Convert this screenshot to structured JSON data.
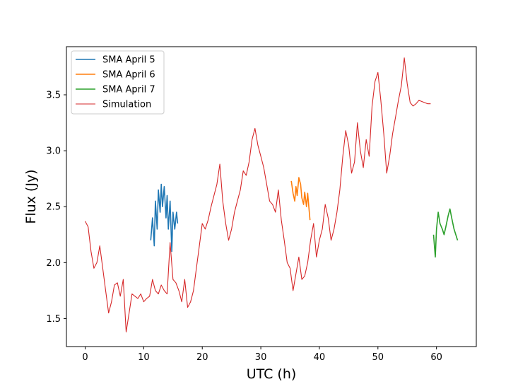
{
  "chart_data": {
    "type": "line",
    "title": "",
    "xlabel": "UTC (h)",
    "ylabel": "Flux (Jy)",
    "xlim": [
      -3.2,
      66.8
    ],
    "ylim": [
      1.25,
      3.93
    ],
    "xticks": [
      0,
      10,
      20,
      30,
      40,
      50,
      60
    ],
    "yticks": [
      1.5,
      2.0,
      2.5,
      3.0,
      3.5
    ],
    "xtick_labels": [
      "0",
      "10",
      "20",
      "30",
      "40",
      "50",
      "60"
    ],
    "ytick_labels": [
      "1.5",
      "2.0",
      "2.5",
      "3.0",
      "3.5"
    ],
    "grid": false,
    "legend_position": "upper-left",
    "series": [
      {
        "name": "SMA April 5",
        "color": "#1f77b4",
        "x": [
          11.2,
          11.5,
          11.8,
          12.0,
          12.3,
          12.5,
          12.8,
          13.0,
          13.2,
          13.5,
          13.8,
          14.0,
          14.2,
          14.5,
          14.8,
          15.0,
          15.3,
          15.6,
          15.8
        ],
        "y": [
          2.2,
          2.4,
          2.15,
          2.55,
          2.3,
          2.65,
          2.45,
          2.7,
          2.5,
          2.68,
          2.4,
          2.6,
          2.3,
          2.55,
          2.1,
          2.45,
          2.3,
          2.45,
          2.35
        ]
      },
      {
        "name": "SMA April 6",
        "color": "#ff7f0e",
        "x": [
          35.2,
          35.5,
          35.8,
          36.0,
          36.2,
          36.5,
          36.8,
          37.0,
          37.3,
          37.5,
          37.8,
          38.0,
          38.2,
          38.4
        ],
        "y": [
          2.73,
          2.62,
          2.55,
          2.68,
          2.6,
          2.76,
          2.7,
          2.58,
          2.52,
          2.63,
          2.5,
          2.62,
          2.5,
          2.38
        ]
      },
      {
        "name": "SMA April 7",
        "color": "#2ca02c",
        "x": [
          59.5,
          59.8,
          60.0,
          60.3,
          60.6,
          61.0,
          61.3,
          61.6,
          62.0,
          62.3,
          62.6,
          63.0,
          63.3,
          63.6
        ],
        "y": [
          2.25,
          2.05,
          2.3,
          2.45,
          2.35,
          2.3,
          2.25,
          2.32,
          2.42,
          2.48,
          2.4,
          2.3,
          2.25,
          2.2
        ]
      },
      {
        "name": "Simulation",
        "color": "#d62728",
        "x": [
          0.0,
          0.5,
          1.0,
          1.5,
          2.0,
          2.5,
          3.0,
          3.5,
          4.0,
          4.5,
          5.0,
          5.5,
          6.0,
          6.5,
          7.0,
          7.5,
          8.0,
          8.5,
          9.0,
          9.5,
          10.0,
          10.5,
          11.0,
          11.5,
          12.0,
          12.5,
          13.0,
          13.5,
          14.0,
          14.5,
          15.0,
          15.5,
          16.0,
          16.5,
          17.0,
          17.5,
          18.0,
          18.5,
          19.0,
          19.5,
          20.0,
          20.5,
          21.0,
          21.5,
          22.0,
          22.5,
          23.0,
          23.5,
          24.0,
          24.5,
          25.0,
          25.5,
          26.0,
          26.5,
          27.0,
          27.5,
          28.0,
          28.5,
          29.0,
          29.5,
          30.0,
          30.5,
          31.0,
          31.5,
          32.0,
          32.5,
          33.0,
          33.5,
          34.0,
          34.5,
          35.0,
          35.5,
          36.0,
          36.5,
          37.0,
          37.5,
          38.0,
          38.5,
          39.0,
          39.5,
          40.0,
          40.5,
          41.0,
          41.5,
          42.0,
          42.5,
          43.0,
          43.5,
          44.0,
          44.5,
          45.0,
          45.5,
          46.0,
          46.5,
          47.0,
          47.5,
          48.0,
          48.5,
          49.0,
          49.5,
          50.0,
          50.5,
          51.0,
          51.5,
          52.0,
          52.5,
          53.0,
          53.5,
          54.0,
          54.5,
          55.0,
          55.5,
          56.0,
          56.5,
          57.0,
          57.5,
          58.0,
          58.5,
          59.0
        ],
        "y": [
          2.37,
          2.32,
          2.1,
          1.95,
          2.0,
          2.15,
          1.95,
          1.75,
          1.55,
          1.65,
          1.8,
          1.82,
          1.7,
          1.85,
          1.38,
          1.55,
          1.72,
          1.7,
          1.68,
          1.72,
          1.65,
          1.68,
          1.7,
          1.85,
          1.75,
          1.72,
          1.8,
          1.75,
          1.72,
          2.18,
          1.85,
          1.82,
          1.75,
          1.65,
          1.85,
          1.6,
          1.65,
          1.75,
          1.95,
          2.15,
          2.35,
          2.3,
          2.38,
          2.5,
          2.6,
          2.7,
          2.88,
          2.55,
          2.35,
          2.2,
          2.3,
          2.45,
          2.55,
          2.65,
          2.82,
          2.78,
          2.9,
          3.1,
          3.2,
          3.05,
          2.95,
          2.85,
          2.7,
          2.55,
          2.52,
          2.45,
          2.65,
          2.38,
          2.2,
          2.0,
          1.95,
          1.75,
          1.9,
          2.05,
          1.85,
          1.88,
          2.0,
          2.2,
          2.35,
          2.05,
          2.2,
          2.3,
          2.52,
          2.4,
          2.2,
          2.3,
          2.45,
          2.65,
          2.95,
          3.18,
          3.05,
          2.8,
          2.9,
          3.25,
          3.0,
          2.85,
          3.1,
          2.95,
          3.4,
          3.62,
          3.7,
          3.45,
          3.15,
          2.8,
          2.95,
          3.15,
          3.3,
          3.45,
          3.58,
          3.83,
          3.6,
          3.43,
          3.4,
          3.42,
          3.45,
          3.44,
          3.43,
          3.42,
          3.42
        ]
      }
    ]
  }
}
